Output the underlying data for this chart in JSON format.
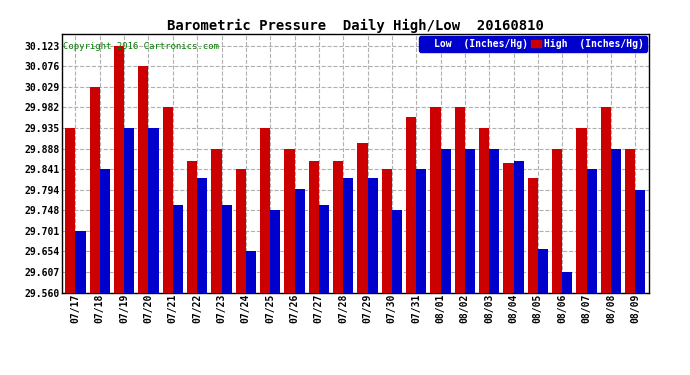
{
  "title": "Barometric Pressure  Daily High/Low  20160810",
  "copyright": "Copyright 2016 Cartronics.com",
  "legend_low": "Low  (Inches/Hg)",
  "legend_high": "High  (Inches/Hg)",
  "background_color": "#ffffff",
  "grid_color": "#b0b0b0",
  "bar_color_low": "#0000cc",
  "bar_color_high": "#cc0000",
  "ylim_min": 29.56,
  "ylim_max": 30.15,
  "yticks": [
    30.123,
    30.076,
    30.029,
    29.982,
    29.935,
    29.888,
    29.841,
    29.794,
    29.748,
    29.701,
    29.654,
    29.607,
    29.56
  ],
  "dates": [
    "07/17",
    "07/18",
    "07/19",
    "07/20",
    "07/21",
    "07/22",
    "07/23",
    "07/24",
    "07/25",
    "07/26",
    "07/27",
    "07/28",
    "07/29",
    "07/30",
    "07/31",
    "08/01",
    "08/02",
    "08/03",
    "08/04",
    "08/05",
    "08/06",
    "08/07",
    "08/08",
    "08/09"
  ],
  "high_values": [
    29.935,
    30.029,
    30.123,
    30.076,
    29.982,
    29.86,
    29.888,
    29.841,
    29.935,
    29.888,
    29.86,
    29.86,
    29.9,
    29.841,
    29.96,
    29.982,
    29.982,
    29.935,
    29.855,
    29.82,
    29.888,
    29.935,
    29.982,
    29.888
  ],
  "low_values": [
    29.701,
    29.841,
    29.935,
    29.935,
    29.76,
    29.82,
    29.76,
    29.654,
    29.748,
    29.795,
    29.76,
    29.82,
    29.82,
    29.748,
    29.841,
    29.888,
    29.888,
    29.888,
    29.86,
    29.66,
    29.607,
    29.841,
    29.888,
    29.794
  ]
}
